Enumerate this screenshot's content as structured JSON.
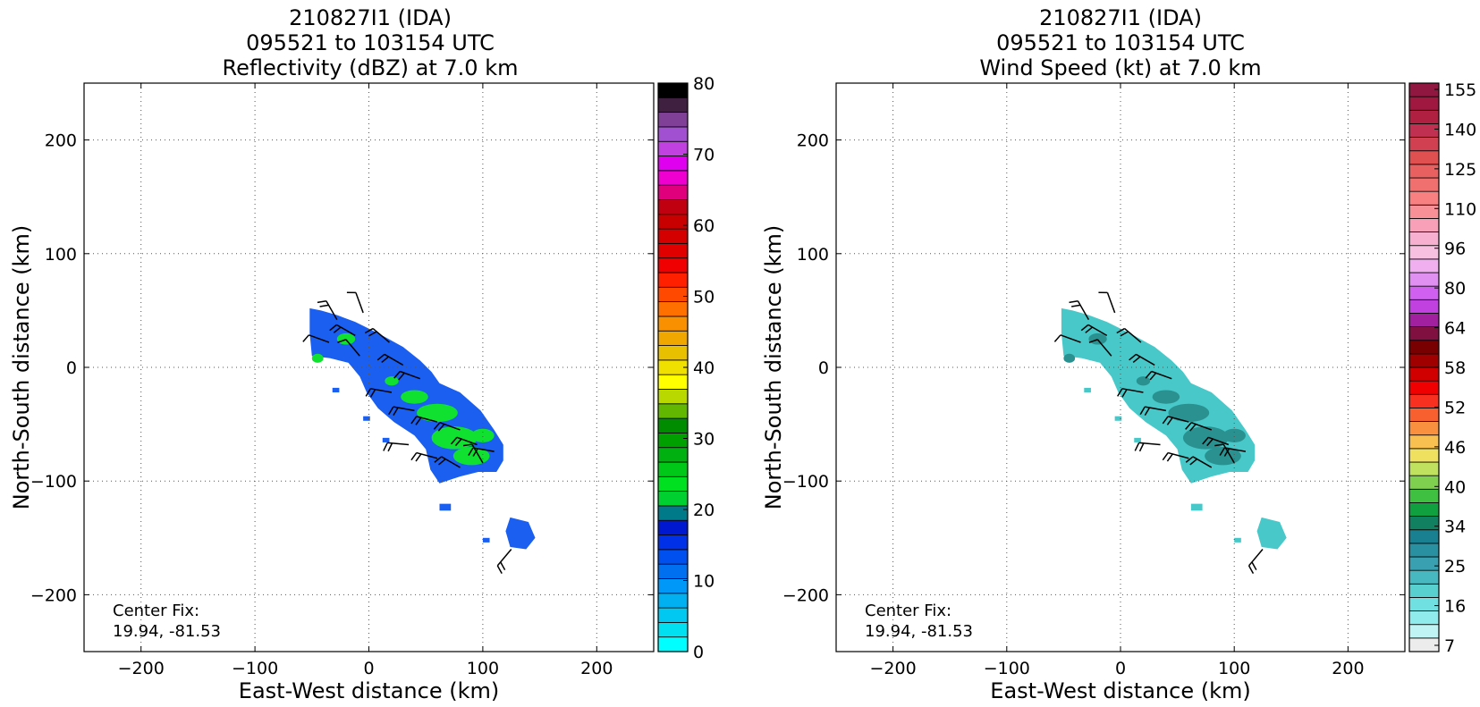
{
  "chart_data": [
    {
      "type": "heatmap",
      "title_lines": [
        "210827I1 (IDA)",
        "095521 to 103154 UTC",
        "Reflectivity (dBZ) at 7.0 km"
      ],
      "xlabel": "East-West distance (km)",
      "ylabel": "North-South distance (km)",
      "xlim": [
        -250,
        250
      ],
      "ylim": [
        -250,
        250
      ],
      "xticks": [
        -200,
        -100,
        0,
        100,
        200
      ],
      "yticks": [
        -200,
        -100,
        0,
        100,
        200
      ],
      "xtick_labels": [
        "−200",
        "−100",
        "0",
        "100",
        "200"
      ],
      "ytick_labels": [
        "−200",
        "−100",
        "0",
        "100",
        "200"
      ],
      "grid": true,
      "annotation_lines": [
        "Center Fix:",
        "19.94, -81.53"
      ],
      "colorbar": {
        "ticks": [
          0,
          10,
          20,
          30,
          40,
          50,
          60,
          70,
          80
        ],
        "tick_labels": [
          "0",
          "10",
          "20",
          "30",
          "40",
          "50",
          "60",
          "70",
          "80"
        ],
        "colors": [
          "#00ffff",
          "#00e0f0",
          "#00c8f0",
          "#00b0f0",
          "#0098f8",
          "#0070f0",
          "#0050f0",
          "#0030e8",
          "#0018d0",
          "#007a88",
          "#00d030",
          "#00e020",
          "#00c818",
          "#00b010",
          "#00a000",
          "#008c00",
          "#62b800",
          "#b8d800",
          "#ffff00",
          "#f0e000",
          "#e8c000",
          "#f0a800",
          "#f89000",
          "#ff7000",
          "#ff4800",
          "#ff2000",
          "#f00000",
          "#e00000",
          "#d40000",
          "#c80000",
          "#c00010",
          "#e0007c",
          "#f000d0",
          "#e000f0",
          "#c040e0",
          "#a050d0",
          "#804098",
          "#402040",
          "#000000"
        ]
      },
      "fill_color": "#1a5ff0",
      "highlight_color": "#10e030"
    },
    {
      "type": "heatmap",
      "title_lines": [
        "210827I1 (IDA)",
        "095521 to 103154 UTC",
        "Wind Speed (kt) at 7.0 km"
      ],
      "xlabel": "East-West distance (km)",
      "ylabel": "North-South distance (km)",
      "xlim": [
        -250,
        250
      ],
      "ylim": [
        -250,
        250
      ],
      "xticks": [
        -200,
        -100,
        0,
        100,
        200
      ],
      "yticks": [
        -200,
        -100,
        0,
        100,
        200
      ],
      "xtick_labels": [
        "−200",
        "−100",
        "0",
        "100",
        "200"
      ],
      "ytick_labels": [
        "−200",
        "−100",
        "0",
        "100",
        "200"
      ],
      "grid": true,
      "annotation_lines": [
        "Center Fix:",
        "19.94, -81.53"
      ],
      "colorbar": {
        "tick_labels": [
          "7",
          "16",
          "25",
          "34",
          "40",
          "46",
          "52",
          "58",
          "64",
          "80",
          "96",
          "110",
          "125",
          "140",
          "155"
        ],
        "colors": [
          "#ececec",
          "#c0f4f4",
          "#90ecec",
          "#70e0e0",
          "#58d0d0",
          "#48b8c0",
          "#38a0b0",
          "#2890a0",
          "#188090",
          "#108060",
          "#10a040",
          "#40c040",
          "#80d050",
          "#c0e060",
          "#f0e060",
          "#f8c050",
          "#f89040",
          "#f86030",
          "#f83020",
          "#f00000",
          "#d00000",
          "#a00000",
          "#780000",
          "#801040",
          "#a020a0",
          "#c040e0",
          "#d060f0",
          "#e090f0",
          "#f0b0f0",
          "#f8c0e0",
          "#f8b0d0",
          "#f8a0b8",
          "#f89098",
          "#f88080",
          "#f07070",
          "#e86060",
          "#e05050",
          "#d04050",
          "#c03050",
          "#b02040",
          "#a01840",
          "#901840"
        ]
      },
      "fill_color": "#48c8c8",
      "highlight_color": "#2a9090"
    }
  ]
}
